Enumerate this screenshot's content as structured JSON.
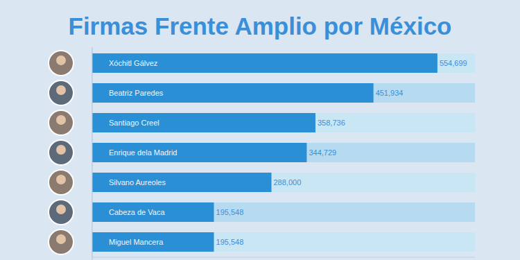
{
  "chart_data": {
    "type": "bar",
    "orientation": "horizontal",
    "title": "Firmas Frente Amplio por México",
    "categories": [
      "Xóchitl Gálvez",
      "Beatriz Paredes",
      "Santiago Creel",
      "Enrique dela Madrid",
      "Silvano Aureoles",
      "Cabeza de Vaca",
      "Miguel Mancera"
    ],
    "values": [
      554699,
      451934,
      358736,
      344729,
      288000,
      195548,
      195548
    ],
    "value_labels": [
      "554,699",
      "451,934",
      "358,736",
      "344,729",
      "288,000",
      "195,548",
      "195,548"
    ],
    "color": "#2b8fd6",
    "xlim": [
      0,
      615000
    ],
    "data_labels": true,
    "grid": false,
    "tick_labels": false
  }
}
